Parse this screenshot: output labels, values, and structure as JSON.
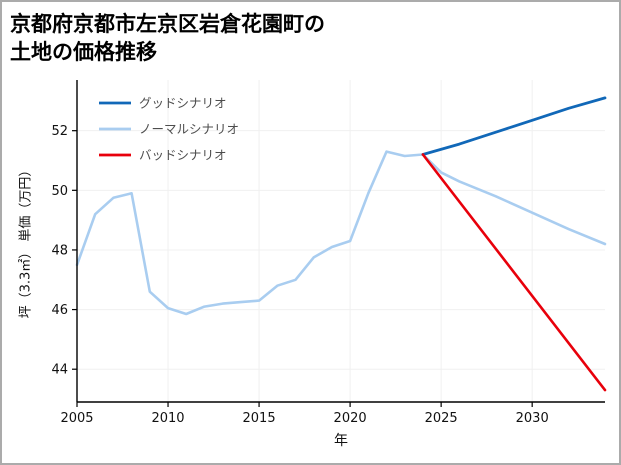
{
  "title": {
    "line1": "京都府京都市左京区岩倉花園町の",
    "line2": "土地の価格推移"
  },
  "chart_data": {
    "type": "line",
    "title": "京都府京都市左京区岩倉花園町の土地の価格推移",
    "xlabel": "年",
    "ylabel": "坪（3.3㎡） 単価（万円）",
    "xlim": [
      2005,
      2034
    ],
    "ylim": [
      42.9,
      53.7
    ],
    "xticks": [
      2005,
      2010,
      2015,
      2020,
      2025,
      2030
    ],
    "yticks": [
      44,
      46,
      48,
      50,
      52
    ],
    "grid": true,
    "grid_color": "#f0f0f0",
    "axis_color": "#000000",
    "background": "#ffffff",
    "legend_position": "upper left",
    "legend": [
      {
        "label": "グッドシナリオ",
        "color": "#1168b8"
      },
      {
        "label": "ノーマルシナリオ",
        "color": "#a9cdf0"
      },
      {
        "label": "バッドシナリオ",
        "color": "#e8000b"
      }
    ],
    "series": [
      {
        "name": "ノーマルシナリオ",
        "color": "#a9cdf0",
        "width": 2.6,
        "x": [
          2005,
          2006,
          2007,
          2008,
          2009,
          2010,
          2011,
          2012,
          2013,
          2014,
          2015,
          2016,
          2017,
          2018,
          2019,
          2020,
          2021,
          2022,
          2023,
          2024,
          2025,
          2026,
          2028,
          2030,
          2032,
          2034
        ],
        "y": [
          47.5,
          49.2,
          49.75,
          49.9,
          46.6,
          46.05,
          45.85,
          46.1,
          46.2,
          46.25,
          46.3,
          46.8,
          47.0,
          47.75,
          48.1,
          48.3,
          49.9,
          51.3,
          51.15,
          51.2,
          50.6,
          50.3,
          49.8,
          49.25,
          48.7,
          48.2
        ]
      },
      {
        "name": "グッドシナリオ",
        "color": "#1168b8",
        "width": 2.8,
        "x": [
          2024,
          2026,
          2028,
          2030,
          2032,
          2034
        ],
        "y": [
          51.2,
          51.55,
          51.95,
          52.35,
          52.75,
          53.1
        ]
      },
      {
        "name": "バッドシナリオ",
        "color": "#e8000b",
        "width": 2.6,
        "x": [
          2024,
          2034
        ],
        "y": [
          51.2,
          43.3
        ]
      }
    ]
  }
}
